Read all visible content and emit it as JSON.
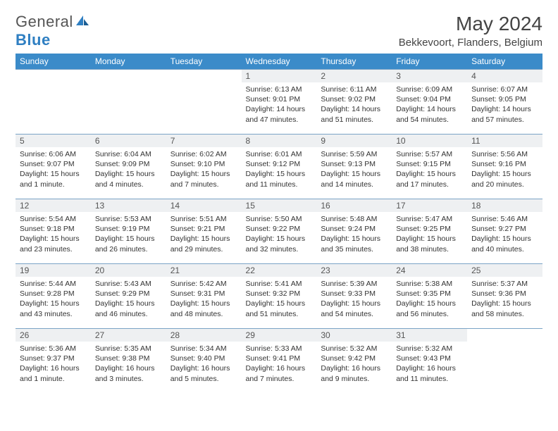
{
  "brand": {
    "name_a": "General",
    "name_b": "Blue"
  },
  "title": "May 2024",
  "location": "Bekkevoort, Flanders, Belgium",
  "colors": {
    "header_bg": "#3b8bc9",
    "header_text": "#ffffff",
    "daynum_bg": "#eef0f2",
    "border": "#7aa3c6",
    "text": "#333333",
    "brand_gray": "#555555",
    "brand_blue": "#2f7fc2"
  },
  "weekdays": [
    "Sunday",
    "Monday",
    "Tuesday",
    "Wednesday",
    "Thursday",
    "Friday",
    "Saturday"
  ],
  "weeks": [
    [
      null,
      null,
      null,
      {
        "n": "1",
        "sunrise": "6:13 AM",
        "sunset": "9:01 PM",
        "daylight": "14 hours and 47 minutes."
      },
      {
        "n": "2",
        "sunrise": "6:11 AM",
        "sunset": "9:02 PM",
        "daylight": "14 hours and 51 minutes."
      },
      {
        "n": "3",
        "sunrise": "6:09 AM",
        "sunset": "9:04 PM",
        "daylight": "14 hours and 54 minutes."
      },
      {
        "n": "4",
        "sunrise": "6:07 AM",
        "sunset": "9:05 PM",
        "daylight": "14 hours and 57 minutes."
      }
    ],
    [
      {
        "n": "5",
        "sunrise": "6:06 AM",
        "sunset": "9:07 PM",
        "daylight": "15 hours and 1 minute."
      },
      {
        "n": "6",
        "sunrise": "6:04 AM",
        "sunset": "9:09 PM",
        "daylight": "15 hours and 4 minutes."
      },
      {
        "n": "7",
        "sunrise": "6:02 AM",
        "sunset": "9:10 PM",
        "daylight": "15 hours and 7 minutes."
      },
      {
        "n": "8",
        "sunrise": "6:01 AM",
        "sunset": "9:12 PM",
        "daylight": "15 hours and 11 minutes."
      },
      {
        "n": "9",
        "sunrise": "5:59 AM",
        "sunset": "9:13 PM",
        "daylight": "15 hours and 14 minutes."
      },
      {
        "n": "10",
        "sunrise": "5:57 AM",
        "sunset": "9:15 PM",
        "daylight": "15 hours and 17 minutes."
      },
      {
        "n": "11",
        "sunrise": "5:56 AM",
        "sunset": "9:16 PM",
        "daylight": "15 hours and 20 minutes."
      }
    ],
    [
      {
        "n": "12",
        "sunrise": "5:54 AM",
        "sunset": "9:18 PM",
        "daylight": "15 hours and 23 minutes."
      },
      {
        "n": "13",
        "sunrise": "5:53 AM",
        "sunset": "9:19 PM",
        "daylight": "15 hours and 26 minutes."
      },
      {
        "n": "14",
        "sunrise": "5:51 AM",
        "sunset": "9:21 PM",
        "daylight": "15 hours and 29 minutes."
      },
      {
        "n": "15",
        "sunrise": "5:50 AM",
        "sunset": "9:22 PM",
        "daylight": "15 hours and 32 minutes."
      },
      {
        "n": "16",
        "sunrise": "5:48 AM",
        "sunset": "9:24 PM",
        "daylight": "15 hours and 35 minutes."
      },
      {
        "n": "17",
        "sunrise": "5:47 AM",
        "sunset": "9:25 PM",
        "daylight": "15 hours and 38 minutes."
      },
      {
        "n": "18",
        "sunrise": "5:46 AM",
        "sunset": "9:27 PM",
        "daylight": "15 hours and 40 minutes."
      }
    ],
    [
      {
        "n": "19",
        "sunrise": "5:44 AM",
        "sunset": "9:28 PM",
        "daylight": "15 hours and 43 minutes."
      },
      {
        "n": "20",
        "sunrise": "5:43 AM",
        "sunset": "9:29 PM",
        "daylight": "15 hours and 46 minutes."
      },
      {
        "n": "21",
        "sunrise": "5:42 AM",
        "sunset": "9:31 PM",
        "daylight": "15 hours and 48 minutes."
      },
      {
        "n": "22",
        "sunrise": "5:41 AM",
        "sunset": "9:32 PM",
        "daylight": "15 hours and 51 minutes."
      },
      {
        "n": "23",
        "sunrise": "5:39 AM",
        "sunset": "9:33 PM",
        "daylight": "15 hours and 54 minutes."
      },
      {
        "n": "24",
        "sunrise": "5:38 AM",
        "sunset": "9:35 PM",
        "daylight": "15 hours and 56 minutes."
      },
      {
        "n": "25",
        "sunrise": "5:37 AM",
        "sunset": "9:36 PM",
        "daylight": "15 hours and 58 minutes."
      }
    ],
    [
      {
        "n": "26",
        "sunrise": "5:36 AM",
        "sunset": "9:37 PM",
        "daylight": "16 hours and 1 minute."
      },
      {
        "n": "27",
        "sunrise": "5:35 AM",
        "sunset": "9:38 PM",
        "daylight": "16 hours and 3 minutes."
      },
      {
        "n": "28",
        "sunrise": "5:34 AM",
        "sunset": "9:40 PM",
        "daylight": "16 hours and 5 minutes."
      },
      {
        "n": "29",
        "sunrise": "5:33 AM",
        "sunset": "9:41 PM",
        "daylight": "16 hours and 7 minutes."
      },
      {
        "n": "30",
        "sunrise": "5:32 AM",
        "sunset": "9:42 PM",
        "daylight": "16 hours and 9 minutes."
      },
      {
        "n": "31",
        "sunrise": "5:32 AM",
        "sunset": "9:43 PM",
        "daylight": "16 hours and 11 minutes."
      },
      null
    ]
  ],
  "labels": {
    "sunrise": "Sunrise:",
    "sunset": "Sunset:",
    "daylight": "Daylight:"
  }
}
